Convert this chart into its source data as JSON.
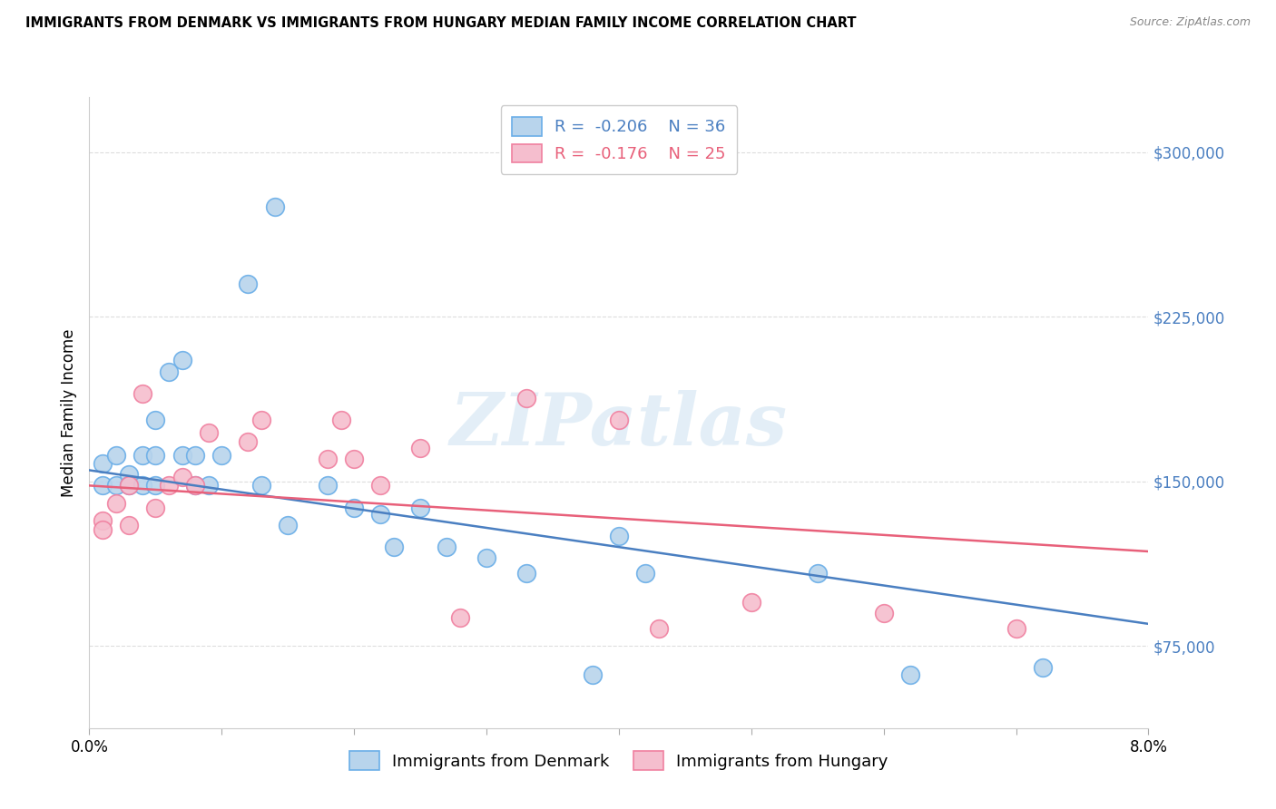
{
  "title": "IMMIGRANTS FROM DENMARK VS IMMIGRANTS FROM HUNGARY MEDIAN FAMILY INCOME CORRELATION CHART",
  "source": "Source: ZipAtlas.com",
  "ylabel": "Median Family Income",
  "x_min": 0.0,
  "x_max": 0.08,
  "y_min": 37500,
  "y_max": 325000,
  "yticks": [
    75000,
    150000,
    225000,
    300000
  ],
  "ytick_labels": [
    "$75,000",
    "$150,000",
    "$225,000",
    "$300,000"
  ],
  "xticks": [
    0.0,
    0.01,
    0.02,
    0.03,
    0.04,
    0.05,
    0.06,
    0.07,
    0.08
  ],
  "xtick_labels": [
    "0.0%",
    "",
    "",
    "",
    "",
    "",
    "",
    "",
    "8.0%"
  ],
  "denmark_color": "#b8d4ec",
  "hungary_color": "#f5bece",
  "denmark_edge_color": "#6aaee8",
  "hungary_edge_color": "#f080a0",
  "denmark_line_color": "#4a7fc1",
  "hungary_line_color": "#e8607a",
  "legend_r_denmark": "R =  -0.206",
  "legend_n_denmark": "N = 36",
  "legend_r_hungary": "R =  -0.176",
  "legend_n_hungary": "N = 25",
  "watermark": "ZIPatlas",
  "denmark_x": [
    0.001,
    0.001,
    0.002,
    0.002,
    0.003,
    0.003,
    0.004,
    0.004,
    0.005,
    0.005,
    0.005,
    0.006,
    0.007,
    0.007,
    0.008,
    0.008,
    0.009,
    0.01,
    0.012,
    0.013,
    0.014,
    0.015,
    0.018,
    0.02,
    0.022,
    0.023,
    0.025,
    0.027,
    0.03,
    0.033,
    0.038,
    0.04,
    0.042,
    0.055,
    0.062,
    0.072
  ],
  "denmark_y": [
    158000,
    148000,
    162000,
    148000,
    153000,
    148000,
    162000,
    148000,
    178000,
    162000,
    148000,
    200000,
    205000,
    162000,
    162000,
    148000,
    148000,
    162000,
    240000,
    148000,
    275000,
    130000,
    148000,
    138000,
    135000,
    120000,
    138000,
    120000,
    115000,
    108000,
    62000,
    125000,
    108000,
    108000,
    62000,
    65000
  ],
  "hungary_x": [
    0.001,
    0.001,
    0.002,
    0.003,
    0.003,
    0.004,
    0.005,
    0.006,
    0.007,
    0.008,
    0.009,
    0.012,
    0.013,
    0.018,
    0.019,
    0.02,
    0.022,
    0.025,
    0.028,
    0.033,
    0.04,
    0.043,
    0.05,
    0.06,
    0.07
  ],
  "hungary_y": [
    132000,
    128000,
    140000,
    148000,
    130000,
    190000,
    138000,
    148000,
    152000,
    148000,
    172000,
    168000,
    178000,
    160000,
    178000,
    160000,
    148000,
    165000,
    88000,
    188000,
    178000,
    83000,
    95000,
    90000,
    83000
  ],
  "denmark_trendline_x": [
    0.0,
    0.08
  ],
  "denmark_trendline_y": [
    155000,
    85000
  ],
  "hungary_trendline_x": [
    0.0,
    0.08
  ],
  "hungary_trendline_y": [
    148000,
    118000
  ],
  "background_color": "#ffffff",
  "grid_color": "#dddddd"
}
